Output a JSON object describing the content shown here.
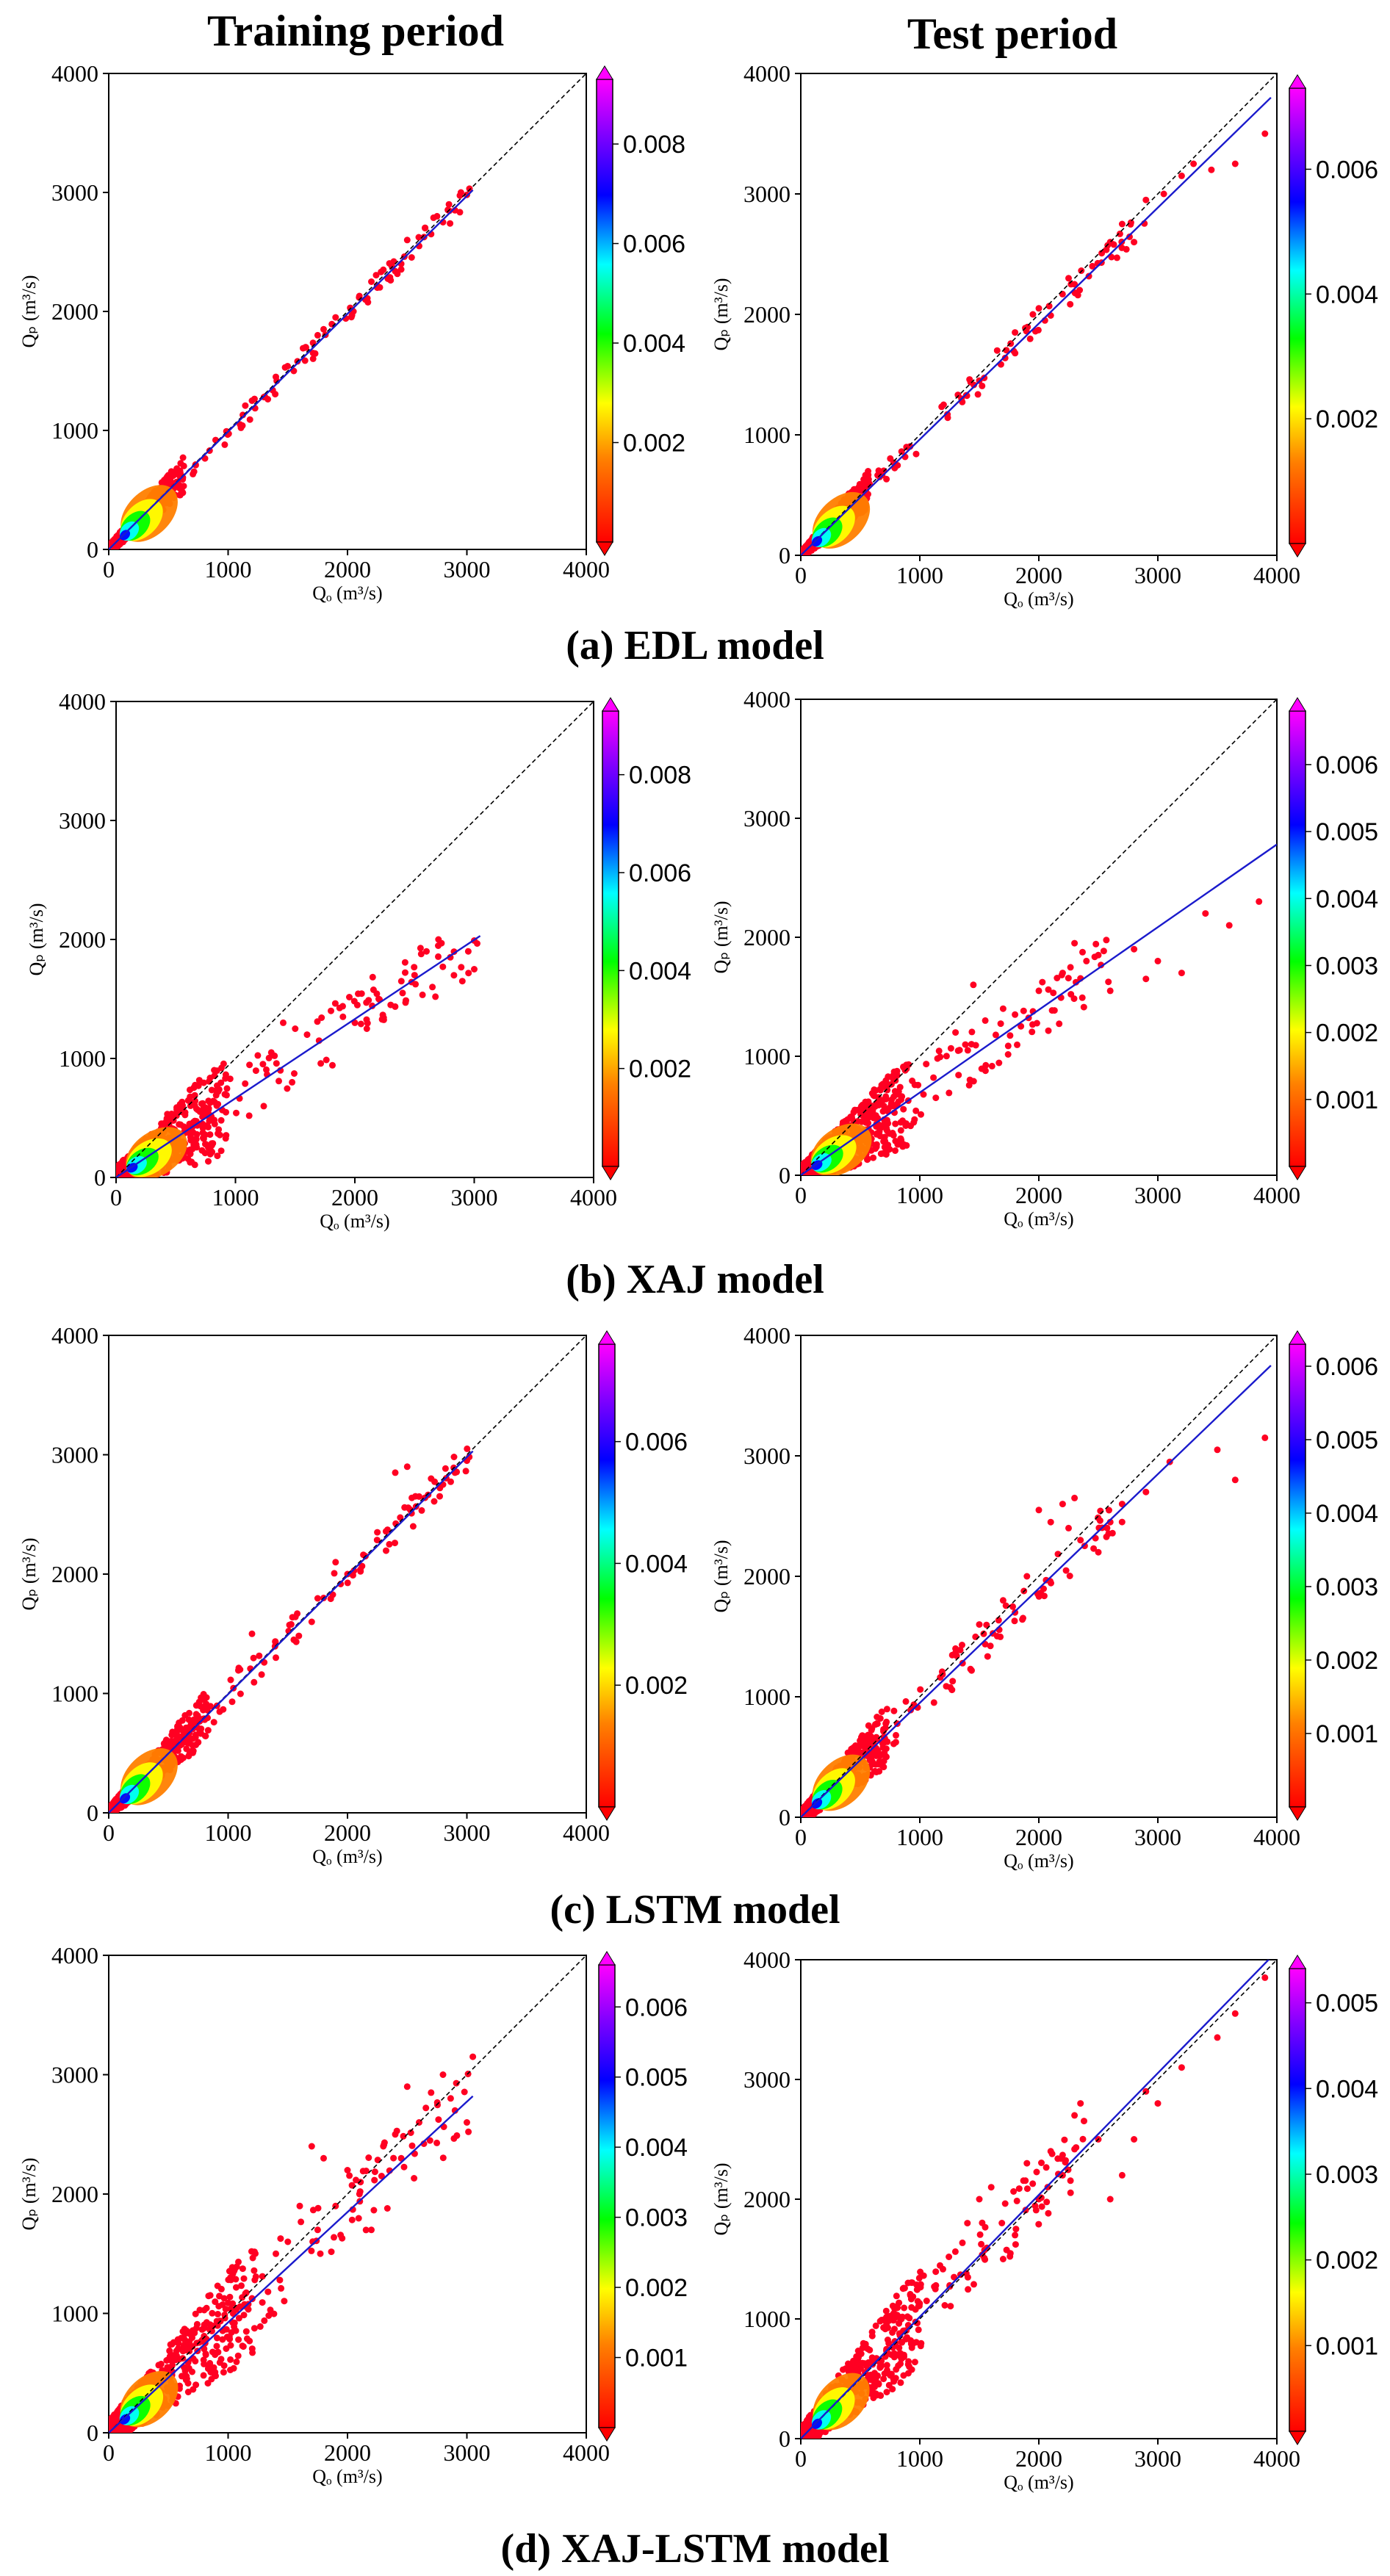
{
  "column_titles": [
    "Training period",
    "Test period"
  ],
  "row_captions": [
    "(a) EDL model",
    "(b) XAJ model",
    "(c) LSTM model",
    "(d) XAJ-LSTM model"
  ],
  "axis_labels": {
    "x": "Qₒ (m³/s)",
    "y": "Qₚ (m³/s)"
  },
  "colors": {
    "points": "#ff0022",
    "fit_line": "#1a1acc",
    "identity_line": "#000000",
    "colormap": [
      "#ff0000",
      "#ff8000",
      "#ffff00",
      "#00ff00",
      "#00ffff",
      "#0000ff",
      "#8000ff",
      "#ff00ff"
    ]
  },
  "chart_data": [
    {
      "type": "scatter",
      "panel": "(a) EDL model",
      "period": "Training period",
      "xlim": [
        0,
        4000
      ],
      "ylim": [
        0,
        4000
      ],
      "xticks": [
        0,
        1000,
        2000,
        3000,
        4000
      ],
      "yticks": [
        0,
        1000,
        2000,
        3000,
        4000
      ],
      "identity_line": true,
      "fit_line": {
        "x": [
          0,
          3050
        ],
        "y": [
          0,
          3020
        ]
      },
      "colorbar": {
        "ticks": [
          0.002,
          0.004,
          0.006,
          0.008
        ],
        "max": 0.0093
      },
      "density": {
        "core_max_x": 600,
        "extent_x": 3050,
        "spread": 80,
        "max_y": 3050
      },
      "x": [
        1800,
        1900,
        2050,
        2150,
        2250,
        2300,
        2450,
        2500,
        2600,
        2650,
        2700,
        2750,
        2850,
        2900,
        2950,
        3000,
        1550,
        1650,
        1750,
        1200,
        1300,
        1400,
        1100,
        2800,
        2200
      ],
      "y": [
        1850,
        1950,
        2000,
        2100,
        2200,
        2350,
        2400,
        2600,
        2550,
        2700,
        2650,
        2800,
        2900,
        2850,
        3000,
        2980,
        1500,
        1700,
        1800,
        1250,
        1280,
        1450,
        1050,
        2750,
        2250
      ]
    },
    {
      "type": "scatter",
      "panel": "(a) EDL model",
      "period": "Test period",
      "xlim": [
        0,
        4000
      ],
      "ylim": [
        0,
        4000
      ],
      "xticks": [
        0,
        1000,
        2000,
        3000,
        4000
      ],
      "yticks": [
        0,
        1000,
        2000,
        3000,
        4000
      ],
      "identity_line": true,
      "fit_line": {
        "x": [
          0,
          3950
        ],
        "y": [
          0,
          3800
        ]
      },
      "colorbar": {
        "ticks": [
          0.002,
          0.004,
          0.006
        ],
        "max": 0.0073
      },
      "density": {
        "core_max_x": 550,
        "extent_x": 2900,
        "spread": 80,
        "max_y": 2950
      },
      "x": [
        1800,
        1950,
        2000,
        2250,
        2300,
        2450,
        2600,
        2700,
        2900,
        3050,
        3200,
        3300,
        3450,
        3650,
        3900,
        1500,
        1650,
        1200,
        1350,
        2800
      ],
      "y": [
        1850,
        2000,
        2050,
        2300,
        2250,
        2400,
        2600,
        2750,
        2950,
        3000,
        3150,
        3250,
        3200,
        3250,
        3500,
        1450,
        1700,
        1250,
        1300,
        2600
      ]
    },
    {
      "type": "scatter",
      "panel": "(b) XAJ model",
      "period": "Training period",
      "xlim": [
        0,
        4000
      ],
      "ylim": [
        0,
        4000
      ],
      "xticks": [
        0,
        1000,
        2000,
        3000,
        4000
      ],
      "yticks": [
        0,
        1000,
        2000,
        3000,
        4000
      ],
      "identity_line": true,
      "fit_line": {
        "x": [
          0,
          3050
        ],
        "y": [
          0,
          2030
        ]
      },
      "colorbar": {
        "ticks": [
          0.002,
          0.004,
          0.006,
          0.008
        ],
        "max": 0.0093
      },
      "density": {
        "core_max_x": 900,
        "extent_x": 3050,
        "spread": 220,
        "max_y": 2000
      },
      "x": [
        1500,
        1700,
        1800,
        2000,
        2100,
        2200,
        2300,
        2400,
        2500,
        2600,
        2700,
        2800,
        2900,
        3000,
        1300,
        1400,
        1600,
        1900,
        2650,
        2950
      ],
      "y": [
        1250,
        1150,
        1400,
        1300,
        1250,
        1500,
        1450,
        1550,
        1700,
        1900,
        2000,
        1850,
        1650,
        1750,
        1050,
        1300,
        1200,
        1350,
        1600,
        1900
      ]
    },
    {
      "type": "scatter",
      "panel": "(b) XAJ model",
      "period": "Test period",
      "xlim": [
        0,
        4000
      ],
      "ylim": [
        0,
        4000
      ],
      "xticks": [
        0,
        1000,
        2000,
        3000,
        4000
      ],
      "yticks": [
        0,
        1000,
        2000,
        3000,
        4000
      ],
      "identity_line": true,
      "fit_line": {
        "x": [
          0,
          4000
        ],
        "y": [
          0,
          2780
        ]
      },
      "colorbar": {
        "ticks": [
          0.001,
          0.002,
          0.003,
          0.004,
          0.005,
          0.006
        ],
        "max": 0.0068
      },
      "density": {
        "core_max_x": 900,
        "extent_x": 2600,
        "spread": 200,
        "max_y": 2000
      },
      "x": [
        1300,
        1450,
        1550,
        1800,
        2000,
        2200,
        2300,
        2400,
        2600,
        2800,
        2900,
        3000,
        3200,
        3400,
        3600,
        3850,
        1700,
        2500
      ],
      "y": [
        1200,
        1600,
        1300,
        1350,
        1550,
        1700,
        1950,
        1800,
        1550,
        1900,
        1650,
        1800,
        1700,
        2200,
        2100,
        2300,
        1400,
        1850
      ]
    },
    {
      "type": "scatter",
      "panel": "(c) LSTM model",
      "period": "Training period",
      "xlim": [
        0,
        4000
      ],
      "ylim": [
        0,
        4000
      ],
      "xticks": [
        0,
        1000,
        2000,
        3000,
        4000
      ],
      "yticks": [
        0,
        1000,
        2000,
        3000,
        4000
      ],
      "identity_line": true,
      "fit_line": {
        "x": [
          0,
          3050
        ],
        "y": [
          0,
          3030
        ]
      },
      "colorbar": {
        "ticks": [
          0.002,
          0.004,
          0.006
        ],
        "max": 0.0076
      },
      "density": {
        "core_max_x": 800,
        "extent_x": 3050,
        "spread": 110,
        "max_y": 3050
      },
      "x": [
        1200,
        1400,
        1550,
        1700,
        1800,
        2000,
        2150,
        2250,
        2400,
        2500,
        2600,
        2700,
        2800,
        2900,
        3000,
        1100,
        1900,
        2550,
        2350
      ],
      "y": [
        1500,
        1300,
        1450,
        1600,
        1800,
        2000,
        2150,
        2350,
        2850,
        2900,
        2650,
        2800,
        2750,
        2850,
        2950,
        1200,
        2100,
        2400,
        2250
      ]
    },
    {
      "type": "scatter",
      "panel": "(c) LSTM model",
      "period": "Test period",
      "xlim": [
        0,
        4000
      ],
      "ylim": [
        0,
        4000
      ],
      "xticks": [
        0,
        1000,
        2000,
        3000,
        4000
      ],
      "yticks": [
        0,
        1000,
        2000,
        3000,
        4000
      ],
      "identity_line": true,
      "fit_line": {
        "x": [
          0,
          3950
        ],
        "y": [
          0,
          3750
        ]
      },
      "colorbar": {
        "ticks": [
          0.001,
          0.002,
          0.003,
          0.004,
          0.005,
          0.006
        ],
        "max": 0.0063
      },
      "density": {
        "core_max_x": 700,
        "extent_x": 2700,
        "spread": 130,
        "max_y": 2800
      },
      "x": [
        1300,
        1500,
        1700,
        1900,
        2000,
        2100,
        2200,
        2300,
        2350,
        2500,
        2600,
        2700,
        2900,
        3100,
        3500,
        3650,
        3900,
        1800,
        2250
      ],
      "y": [
        1400,
        1600,
        1800,
        2000,
        2550,
        2450,
        2600,
        2650,
        2300,
        2200,
        2450,
        2600,
        2700,
        2950,
        3050,
        2800,
        3150,
        1700,
        2400
      ]
    },
    {
      "type": "scatter",
      "panel": "(d) XAJ-LSTM model",
      "period": "Training period",
      "xlim": [
        0,
        4000
      ],
      "ylim": [
        0,
        4000
      ],
      "xticks": [
        0,
        1000,
        2000,
        3000,
        4000
      ],
      "yticks": [
        0,
        1000,
        2000,
        3000,
        4000
      ],
      "identity_line": true,
      "fit_line": {
        "x": [
          0,
          3050
        ],
        "y": [
          0,
          2820
        ]
      },
      "colorbar": {
        "ticks": [
          0.001,
          0.002,
          0.003,
          0.004,
          0.005,
          0.006
        ],
        "max": 0.0066
      },
      "density": {
        "core_max_x": 1200,
        "extent_x": 3050,
        "spread": 250,
        "max_y": 3150
      },
      "x": [
        1400,
        1500,
        1600,
        1700,
        1800,
        1900,
        2000,
        2100,
        2200,
        2300,
        2400,
        2500,
        2600,
        2700,
        2800,
        2900,
        3000,
        3050,
        1750,
        2450
      ],
      "y": [
        1500,
        1600,
        1900,
        2400,
        2300,
        1900,
        2200,
        2000,
        1700,
        2400,
        2500,
        2900,
        2600,
        2850,
        3000,
        2700,
        2600,
        3150,
        1700,
        2300
      ]
    },
    {
      "type": "scatter",
      "panel": "(d) XAJ-LSTM model",
      "period": "Test period",
      "xlim": [
        0,
        4000
      ],
      "ylim": [
        0,
        4000
      ],
      "xticks": [
        0,
        1000,
        2000,
        3000,
        4000
      ],
      "yticks": [
        0,
        1000,
        2000,
        3000,
        4000
      ],
      "identity_line": true,
      "fit_line": {
        "x": [
          0,
          3950
        ],
        "y": [
          0,
          4020
        ]
      },
      "colorbar": {
        "ticks": [
          0.001,
          0.002,
          0.003,
          0.004,
          0.005
        ],
        "max": 0.0054
      },
      "density": {
        "core_max_x": 1000,
        "extent_x": 2400,
        "spread": 230,
        "max_y": 2800
      },
      "x": [
        1400,
        1500,
        1600,
        1700,
        1800,
        1900,
        2000,
        2100,
        2200,
        2300,
        2350,
        2500,
        2600,
        2700,
        2800,
        2900,
        3000,
        3200,
        3500,
        3650,
        3900
      ],
      "y": [
        1800,
        2000,
        2100,
        1500,
        1700,
        2300,
        2000,
        2400,
        2200,
        2700,
        2800,
        2500,
        2000,
        2200,
        2500,
        2900,
        2800,
        3100,
        3350,
        3550,
        3850
      ]
    }
  ]
}
